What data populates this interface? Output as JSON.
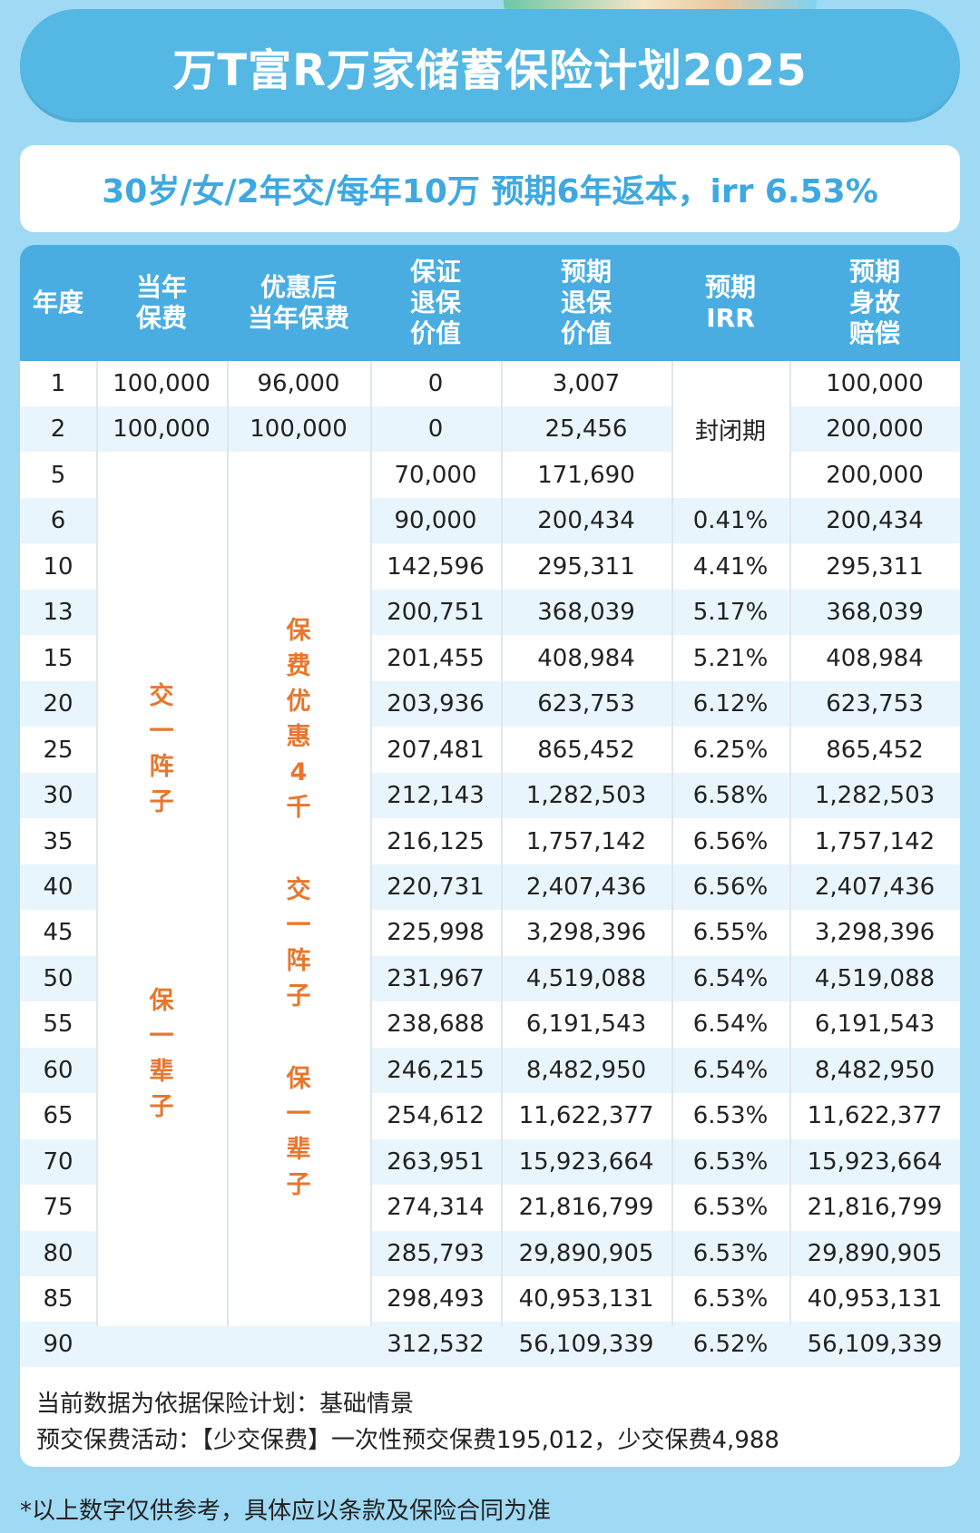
{
  "title": "万T富R万家储蓄保险计划2025",
  "subtitle": "30岁/女/2年交/每年10万  预期6年返本，irr 6.53%",
  "table": {
    "headers": [
      "年度",
      "当年\n保费",
      "优惠后\n当年保费",
      "保证\n退保\n价值",
      "预期\n退保\n价值",
      "预期\nIRR",
      "预期\n身故\n赔偿"
    ],
    "rows": [
      {
        "year": "1",
        "premium": "100,000",
        "discounted": "96,000",
        "guaranteed": "0",
        "expected": "3,007",
        "irr": "",
        "death": "100,000"
      },
      {
        "year": "2",
        "premium": "100,000",
        "discounted": "100,000",
        "guaranteed": "0",
        "expected": "25,456",
        "irr": "",
        "death": "200,000"
      },
      {
        "year": "5",
        "premium": "",
        "discounted": "",
        "guaranteed": "70,000",
        "expected": "171,690",
        "irr": "",
        "death": "200,000"
      },
      {
        "year": "6",
        "premium": "",
        "discounted": "",
        "guaranteed": "90,000",
        "expected": "200,434",
        "irr": "0.41%",
        "death": "200,434"
      },
      {
        "year": "10",
        "premium": "",
        "discounted": "",
        "guaranteed": "142,596",
        "expected": "295,311",
        "irr": "4.41%",
        "death": "295,311"
      },
      {
        "year": "13",
        "premium": "",
        "discounted": "",
        "guaranteed": "200,751",
        "expected": "368,039",
        "irr": "5.17%",
        "death": "368,039"
      },
      {
        "year": "15",
        "premium": "",
        "discounted": "",
        "guaranteed": "201,455",
        "expected": "408,984",
        "irr": "5.21%",
        "death": "408,984"
      },
      {
        "year": "20",
        "premium": "",
        "discounted": "",
        "guaranteed": "203,936",
        "expected": "623,753",
        "irr": "6.12%",
        "death": "623,753"
      },
      {
        "year": "25",
        "premium": "",
        "discounted": "",
        "guaranteed": "207,481",
        "expected": "865,452",
        "irr": "6.25%",
        "death": "865,452"
      },
      {
        "year": "30",
        "premium": "",
        "discounted": "",
        "guaranteed": "212,143",
        "expected": "1,282,503",
        "irr": "6.58%",
        "death": "1,282,503"
      },
      {
        "year": "35",
        "premium": "",
        "discounted": "",
        "guaranteed": "216,125",
        "expected": "1,757,142",
        "irr": "6.56%",
        "death": "1,757,142"
      },
      {
        "year": "40",
        "premium": "",
        "discounted": "",
        "guaranteed": "220,731",
        "expected": "2,407,436",
        "irr": "6.56%",
        "death": "2,407,436"
      },
      {
        "year": "45",
        "premium": "",
        "discounted": "",
        "guaranteed": "225,998",
        "expected": "3,298,396",
        "irr": "6.55%",
        "death": "3,298,396"
      },
      {
        "year": "50",
        "premium": "",
        "discounted": "",
        "guaranteed": "231,967",
        "expected": "4,519,088",
        "irr": "6.54%",
        "death": "4,519,088"
      },
      {
        "year": "55",
        "premium": "",
        "discounted": "",
        "guaranteed": "238,688",
        "expected": "6,191,543",
        "irr": "6.54%",
        "death": "6,191,543"
      },
      {
        "year": "60",
        "premium": "",
        "discounted": "",
        "guaranteed": "246,215",
        "expected": "8,482,950",
        "irr": "6.54%",
        "death": "8,482,950"
      },
      {
        "year": "65",
        "premium": "",
        "discounted": "",
        "guaranteed": "254,612",
        "expected": "11,622,377",
        "irr": "6.53%",
        "death": "11,622,377"
      },
      {
        "year": "70",
        "premium": "",
        "discounted": "",
        "guaranteed": "263,951",
        "expected": "15,923,664",
        "irr": "6.53%",
        "death": "15,923,664"
      },
      {
        "year": "75",
        "premium": "",
        "discounted": "",
        "guaranteed": "274,314",
        "expected": "21,816,799",
        "irr": "6.53%",
        "death": "21,816,799"
      },
      {
        "year": "80",
        "premium": "",
        "discounted": "",
        "guaranteed": "285,793",
        "expected": "29,890,905",
        "irr": "6.53%",
        "death": "29,890,905"
      },
      {
        "year": "85",
        "premium": "",
        "discounted": "",
        "guaranteed": "298,493",
        "expected": "40,953,131",
        "irr": "6.53%",
        "death": "40,953,131"
      },
      {
        "year": "90",
        "premium": "",
        "discounted": "",
        "guaranteed": "312,532",
        "expected": "56,109,339",
        "irr": "6.52%",
        "death": "56,109,339"
      }
    ],
    "closed_period_label": "封闭期",
    "premium_note_chars": [
      "交",
      "一",
      "阵",
      "子",
      "保",
      "一",
      "辈",
      "子"
    ],
    "discount_note_chars": [
      "保",
      "费",
      "优",
      "惠",
      "4",
      "千",
      "交",
      "一",
      "阵",
      "子",
      "保",
      "一",
      "辈",
      "子"
    ]
  },
  "notes": [
    "当前数据为依据保险计划：基础情景",
    "预交保费活动：【少交保费】一次性预交保费195,012，少交保费4,988"
  ],
  "footer": "*以上数字仅供参考，具体应以条款及保险合同为准",
  "colors": {
    "background": "#9fd9f4",
    "title_banner": "#55b7e4",
    "header_bg": "#49ade2",
    "alt_row": "#e9f5fc",
    "accent_text": "#e8762c",
    "subtitle_text": "#3ea9e0"
  }
}
